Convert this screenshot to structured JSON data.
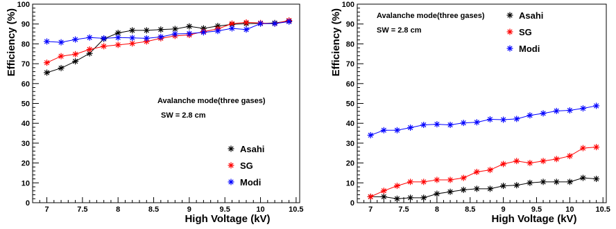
{
  "chart_data": [
    {
      "type": "line",
      "xlabel": "High Voltage (kV)",
      "ylabel": "Efficiency (%)",
      "xlim": [
        6.8,
        10.55
      ],
      "ylim": [
        0,
        100
      ],
      "xticks": [
        "7",
        "7.5",
        "8",
        "8.5",
        "9",
        "9.5",
        "10",
        "10.5"
      ],
      "xtick_values": [
        7,
        7.5,
        8,
        8.5,
        9,
        9.5,
        10,
        10.5
      ],
      "yticks": [
        "0",
        "10",
        "20",
        "30",
        "40",
        "50",
        "60",
        "70",
        "80",
        "90",
        "100"
      ],
      "ytick_values": [
        0,
        10,
        20,
        30,
        40,
        50,
        60,
        70,
        80,
        90,
        100
      ],
      "annotation": {
        "line1": "Avalanche mode(three gases)",
        "line2": "SW = 2.8 cm",
        "placement": "middle-right"
      },
      "legend_placement": "bottom-right",
      "grid": false,
      "series": [
        {
          "name": "Asahi",
          "color": "#000000",
          "x": [
            7.0,
            7.2,
            7.4,
            7.6,
            7.8,
            8.0,
            8.2,
            8.4,
            8.6,
            8.8,
            9.0,
            9.2,
            9.4,
            9.6,
            9.8,
            10.0,
            10.2,
            10.4
          ],
          "values": [
            65.5,
            67.8,
            71.2,
            75.2,
            82.5,
            85.5,
            86.8,
            86.8,
            87.2,
            87.5,
            88.8,
            87.8,
            89.0,
            89.8,
            90.2,
            90.3,
            90.5,
            91.5
          ]
        },
        {
          "name": "SG",
          "color": "#ff0000",
          "x": [
            7.0,
            7.2,
            7.4,
            7.6,
            7.8,
            8.0,
            8.2,
            8.4,
            8.6,
            8.8,
            9.0,
            9.2,
            9.4,
            9.6,
            9.8,
            10.0,
            10.2,
            10.4
          ],
          "values": [
            70.5,
            73.8,
            74.8,
            77.2,
            78.8,
            79.5,
            80.2,
            81.2,
            82.8,
            84.0,
            84.5,
            86.2,
            87.5,
            90.2,
            90.8,
            90.5,
            90.2,
            91.8
          ]
        },
        {
          "name": "Modi",
          "color": "#0000ff",
          "x": [
            7.0,
            7.2,
            7.4,
            7.6,
            7.8,
            8.0,
            8.2,
            8.4,
            8.6,
            8.8,
            9.0,
            9.2,
            9.4,
            9.6,
            9.8,
            10.0,
            10.2,
            10.4
          ],
          "values": [
            81.2,
            80.8,
            82.2,
            83.2,
            82.8,
            83.2,
            83.0,
            82.8,
            83.5,
            85.0,
            85.2,
            85.8,
            86.5,
            87.8,
            87.2,
            90.2,
            90.2,
            91.2
          ]
        }
      ]
    },
    {
      "type": "line",
      "xlabel": "High Voltage (kV)",
      "ylabel": "Efficiency (%)",
      "xlim": [
        6.8,
        10.55
      ],
      "ylim": [
        0,
        100
      ],
      "xticks": [
        "7",
        "7.5",
        "8",
        "8.5",
        "9",
        "9.5",
        "10",
        "10.5"
      ],
      "xtick_values": [
        7,
        7.5,
        8,
        8.5,
        9,
        9.5,
        10,
        10.5
      ],
      "yticks": [
        "0",
        "10",
        "20",
        "30",
        "40",
        "50",
        "60",
        "70",
        "80",
        "90",
        "100"
      ],
      "ytick_values": [
        0,
        10,
        20,
        30,
        40,
        50,
        60,
        70,
        80,
        90,
        100
      ],
      "annotation": {
        "line1": "Avalanche mode(three gases)",
        "line2": "SW = 2.8 cm",
        "placement": "top-left"
      },
      "legend_placement": "top-right",
      "grid": false,
      "series": [
        {
          "name": "Asahi",
          "color": "#000000",
          "x": [
            7.0,
            7.2,
            7.4,
            7.6,
            7.8,
            8.0,
            8.2,
            8.4,
            8.6,
            8.8,
            9.0,
            9.2,
            9.4,
            9.6,
            9.8,
            10.0,
            10.2,
            10.4
          ],
          "values": [
            3.0,
            3.0,
            2.0,
            2.5,
            2.5,
            4.5,
            5.5,
            6.5,
            7.0,
            7.0,
            8.5,
            8.8,
            10.0,
            10.5,
            10.5,
            10.5,
            12.5,
            12.0
          ]
        },
        {
          "name": "SG",
          "color": "#ff0000",
          "x": [
            7.0,
            7.2,
            7.4,
            7.6,
            7.8,
            8.0,
            8.2,
            8.4,
            8.6,
            8.8,
            9.0,
            9.2,
            9.4,
            9.6,
            9.8,
            10.0,
            10.2,
            10.4
          ],
          "values": [
            3.0,
            6.0,
            8.5,
            10.5,
            10.5,
            11.5,
            11.5,
            12.5,
            15.5,
            16.5,
            19.5,
            21.0,
            20.0,
            21.0,
            22.0,
            23.5,
            27.5,
            28.0
          ]
        },
        {
          "name": "Modi",
          "color": "#0000ff",
          "x": [
            7.0,
            7.2,
            7.4,
            7.6,
            7.8,
            8.0,
            8.2,
            8.4,
            8.6,
            8.8,
            9.0,
            9.2,
            9.4,
            9.6,
            9.8,
            10.0,
            10.2,
            10.4
          ],
          "values": [
            34.0,
            36.5,
            36.5,
            37.8,
            39.2,
            39.5,
            39.2,
            40.2,
            40.5,
            42.0,
            41.8,
            42.2,
            44.0,
            45.0,
            46.2,
            46.5,
            47.5,
            48.8
          ]
        }
      ]
    }
  ]
}
